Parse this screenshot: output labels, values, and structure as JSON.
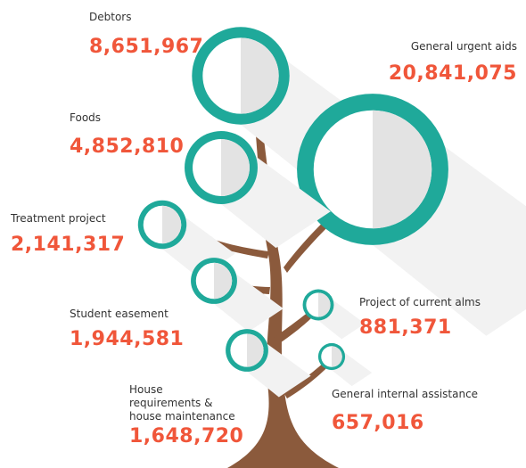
{
  "chart_data": {
    "type": "bubble",
    "categories": [
      "Debtors",
      "General urgent aids",
      "Foods",
      "Treatment project",
      "Student easement",
      "Project of current alms",
      "House requirements & house maintenance",
      "General internal assistance"
    ],
    "values": [
      8651967,
      20841075,
      4852810,
      2141317,
      1944581,
      881371,
      1648720,
      657016
    ],
    "value_labels": [
      "8,651,967",
      "20,841,075",
      "4,852,810",
      "2,141,317",
      "1,944,581",
      "881,371",
      "1,648,720",
      "657,016"
    ],
    "color": "#1fa99a"
  }
}
